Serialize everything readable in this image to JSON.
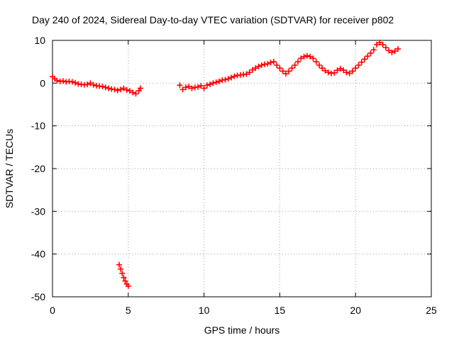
{
  "chart_data": {
    "type": "scatter",
    "title": "Day 240 of 2024, Sidereal Day-to-day VTEC variation (SDTVAR) for receiver p802",
    "xlabel": "GPS time / hours",
    "ylabel": "SDTVAR / TECUs",
    "xlim": [
      0,
      25
    ],
    "ylim": [
      -50,
      10
    ],
    "xticks": [
      "0",
      "5",
      "10",
      "15",
      "20",
      "25"
    ],
    "yticks": [
      "10",
      "0",
      "-10",
      "-20",
      "-30",
      "-40",
      "-50"
    ],
    "grid": true,
    "marker": "plus",
    "color": "#ff0000",
    "series": [
      {
        "name": "SDTVAR",
        "x": [
          0.0,
          0.15,
          0.3,
          0.5,
          0.7,
          0.9,
          1.1,
          1.3,
          1.5,
          1.7,
          1.9,
          2.1,
          2.3,
          2.5,
          2.7,
          2.9,
          3.1,
          3.3,
          3.5,
          3.7,
          3.9,
          4.1,
          4.3,
          4.5,
          4.7,
          4.9,
          5.1,
          5.3,
          5.5,
          5.7,
          5.8,
          4.4,
          4.5,
          4.6,
          4.7,
          4.8,
          4.9,
          5.0,
          8.4,
          8.6,
          8.8,
          9.0,
          9.2,
          9.4,
          9.6,
          9.8,
          10.0,
          10.2,
          10.4,
          10.6,
          10.8,
          11.0,
          11.2,
          11.4,
          11.6,
          11.8,
          12.0,
          12.2,
          12.4,
          12.6,
          12.8,
          13.0,
          13.2,
          13.4,
          13.6,
          13.8,
          14.0,
          14.2,
          14.4,
          14.6,
          14.8,
          15.0,
          15.2,
          15.4,
          15.6,
          15.8,
          16.0,
          16.2,
          16.4,
          16.6,
          16.8,
          17.0,
          17.2,
          17.4,
          17.6,
          17.8,
          18.0,
          18.2,
          18.4,
          18.6,
          18.8,
          19.0,
          19.2,
          19.4,
          19.6,
          19.8,
          20.0,
          20.2,
          20.4,
          20.6,
          20.8,
          21.0,
          21.2,
          21.4,
          21.6,
          21.8,
          22.0,
          22.2,
          22.4,
          22.6,
          22.8
        ],
        "y": [
          1.5,
          1.0,
          0.6,
          0.4,
          0.5,
          0.3,
          0.4,
          0.3,
          0.1,
          -0.2,
          -0.3,
          -0.4,
          -0.3,
          0.0,
          -0.4,
          -0.6,
          -0.7,
          -0.8,
          -1.0,
          -1.2,
          -1.4,
          -1.5,
          -1.7,
          -1.5,
          -1.2,
          -1.6,
          -1.8,
          -2.2,
          -2.5,
          -1.8,
          -1.2,
          -42.5,
          -43.5,
          -44.5,
          -45.5,
          -46.3,
          -47.0,
          -47.5,
          -0.5,
          -1.5,
          -1.0,
          -0.8,
          -1.2,
          -1.0,
          -0.9,
          -0.6,
          -1.2,
          -0.5,
          -0.3,
          0.0,
          0.2,
          0.4,
          0.7,
          0.8,
          1.0,
          1.3,
          1.6,
          1.8,
          1.9,
          2.0,
          2.1,
          2.5,
          3.1,
          3.5,
          3.9,
          4.2,
          4.4,
          4.5,
          4.8,
          5.0,
          4.2,
          3.5,
          2.8,
          2.2,
          2.8,
          3.5,
          4.2,
          5.0,
          5.8,
          6.2,
          6.4,
          6.2,
          5.8,
          5.0,
          4.2,
          3.5,
          2.9,
          2.5,
          2.3,
          2.4,
          3.0,
          3.4,
          3.0,
          2.5,
          2.3,
          2.8,
          3.5,
          4.2,
          4.9,
          5.6,
          6.3,
          7.0,
          7.8,
          9.0,
          9.5,
          9.0,
          8.3,
          7.6,
          7.2,
          7.5,
          8.0
        ]
      }
    ]
  }
}
